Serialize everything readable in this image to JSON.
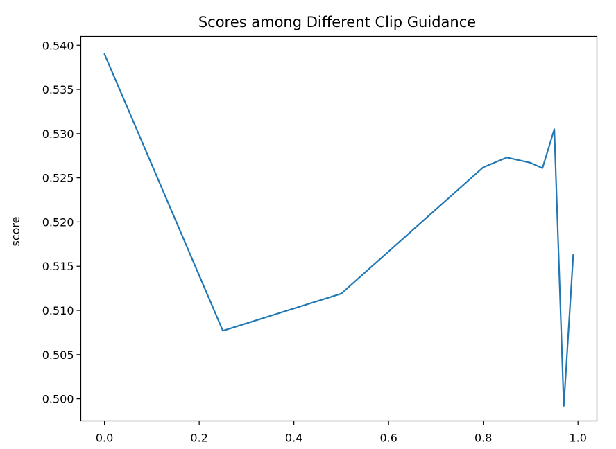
{
  "chart_data": {
    "type": "line",
    "title": "Scores among Different Clip Guidance",
    "xlabel": "",
    "ylabel": "score",
    "xlim": [
      -0.05,
      1.04
    ],
    "ylim": [
      0.4975,
      0.541
    ],
    "xticks": [
      0.0,
      0.2,
      0.4,
      0.6,
      0.8,
      1.0
    ],
    "xtick_labels": [
      "0.0",
      "0.2",
      "0.4",
      "0.6",
      "0.8",
      "1.0"
    ],
    "yticks": [
      0.5,
      0.505,
      0.51,
      0.515,
      0.52,
      0.525,
      0.53,
      0.535,
      0.54
    ],
    "ytick_labels": [
      "0.500",
      "0.505",
      "0.510",
      "0.515",
      "0.520",
      "0.525",
      "0.530",
      "0.535",
      "0.540"
    ],
    "grid": false,
    "series": [
      {
        "color": "#1f77b4",
        "x": [
          0.0,
          0.25,
          0.5,
          0.8,
          0.85,
          0.9,
          0.925,
          0.95,
          0.97,
          0.99
        ],
        "y": [
          0.539,
          0.5077,
          0.5119,
          0.5262,
          0.5273,
          0.5267,
          0.5261,
          0.5305,
          0.4992,
          0.5163
        ]
      }
    ]
  }
}
